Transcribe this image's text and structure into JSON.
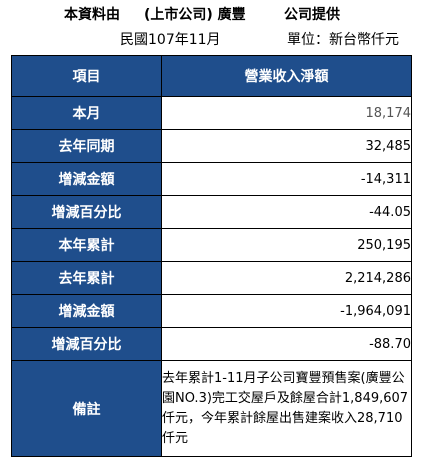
{
  "header": {
    "title_segments": [
      "本資料由",
      "(上市公司) 廣豐",
      "公司提供"
    ],
    "period": "民國107年11月",
    "unit": "單位：新台幣仟元"
  },
  "table": {
    "col_headers": [
      "項目",
      "營業收入淨額"
    ],
    "rows": [
      {
        "label": "本月",
        "value": "18,174"
      },
      {
        "label": "去年同期",
        "value": "32,485"
      },
      {
        "label": "增減金額",
        "value": "-14,311"
      },
      {
        "label": "增減百分比",
        "value": "-44.05"
      },
      {
        "label": "本年累計",
        "value": "250,195"
      },
      {
        "label": "去年累計",
        "value": "2,214,286"
      },
      {
        "label": "增減金額",
        "value": "-1,964,091"
      },
      {
        "label": "增減百分比",
        "value": "-88.70"
      }
    ],
    "note": {
      "label": "備註",
      "value": "去年累計1-11月子公司寶豐預售案(廣豐公園NO.3)完工交屋戶及餘屋合計1,849,607仟元，今年累計餘屋出售建案收入28,710仟元"
    }
  },
  "colors": {
    "header_bg": "#1f4e8c",
    "header_text": "#ffffff",
    "border": "#000000"
  }
}
